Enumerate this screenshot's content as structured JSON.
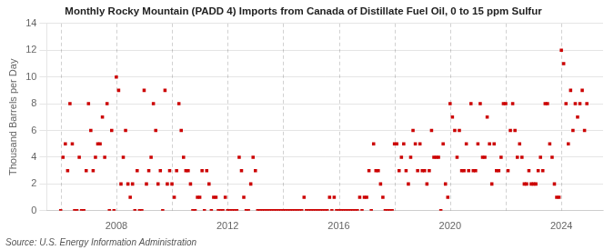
{
  "chart_data": {
    "type": "scatter",
    "title": "Monthly Rocky Mountain (PADD 4) Imports from Canada of Distillate Fuel Oil, 0 to 15 ppm Sulfur",
    "ylabel": "Thousand Barrels per Day",
    "annotations": [
      "Source: U.S. Energy Information Administration"
    ],
    "color": "#cc0000",
    "marker": "square",
    "grid": "y",
    "legend": false,
    "xlim": [
      2005.5,
      2025.5
    ],
    "xticks": [
      2008,
      2012,
      2016,
      2020,
      2024
    ],
    "ylim": [
      0,
      14
    ],
    "yticks": [
      0,
      2,
      4,
      6,
      8,
      10,
      12,
      14
    ],
    "vlines": [
      2006,
      2008,
      2010,
      2012,
      2014,
      2016,
      2018,
      2020,
      2022,
      2024
    ],
    "x": [
      2006.0,
      2006.083,
      2006.167,
      2006.25,
      2006.333,
      2006.417,
      2006.5,
      2006.583,
      2006.667,
      2006.75,
      2006.833,
      2006.917,
      2007.0,
      2007.083,
      2007.167,
      2007.25,
      2007.333,
      2007.417,
      2007.5,
      2007.583,
      2007.667,
      2007.75,
      2007.833,
      2007.917,
      2008.0,
      2008.083,
      2008.167,
      2008.25,
      2008.333,
      2008.417,
      2008.5,
      2008.583,
      2008.667,
      2008.75,
      2008.833,
      2008.917,
      2009.0,
      2009.083,
      2009.167,
      2009.25,
      2009.333,
      2009.417,
      2009.5,
      2009.583,
      2009.667,
      2009.75,
      2009.833,
      2009.917,
      2010.0,
      2010.083,
      2010.167,
      2010.25,
      2010.333,
      2010.417,
      2010.5,
      2010.583,
      2010.667,
      2010.75,
      2010.833,
      2010.917,
      2011.0,
      2011.083,
      2011.167,
      2011.25,
      2011.333,
      2011.417,
      2011.5,
      2011.583,
      2011.667,
      2011.75,
      2011.833,
      2011.917,
      2012.0,
      2012.083,
      2012.167,
      2012.25,
      2012.333,
      2012.417,
      2012.5,
      2012.583,
      2012.667,
      2012.75,
      2012.833,
      2012.917,
      2013.0,
      2013.083,
      2013.167,
      2013.25,
      2013.333,
      2013.417,
      2013.5,
      2013.583,
      2013.667,
      2013.75,
      2013.833,
      2013.917,
      2014.0,
      2014.083,
      2014.167,
      2014.25,
      2014.333,
      2014.417,
      2014.5,
      2014.583,
      2014.667,
      2014.75,
      2014.833,
      2014.917,
      2015.0,
      2015.083,
      2015.167,
      2015.25,
      2015.333,
      2015.417,
      2015.5,
      2015.583,
      2015.667,
      2015.75,
      2015.833,
      2015.917,
      2016.0,
      2016.083,
      2016.167,
      2016.25,
      2016.333,
      2016.417,
      2016.5,
      2016.583,
      2016.667,
      2016.75,
      2016.833,
      2016.917,
      2017.0,
      2017.083,
      2017.167,
      2017.25,
      2017.333,
      2017.417,
      2017.5,
      2017.583,
      2017.667,
      2017.75,
      2017.833,
      2017.917,
      2018.0,
      2018.083,
      2018.167,
      2018.25,
      2018.333,
      2018.417,
      2018.5,
      2018.583,
      2018.667,
      2018.75,
      2018.833,
      2018.917,
      2019.0,
      2019.083,
      2019.167,
      2019.25,
      2019.333,
      2019.417,
      2019.5,
      2019.583,
      2019.667,
      2019.75,
      2019.833,
      2019.917,
      2020.0,
      2020.083,
      2020.167,
      2020.25,
      2020.333,
      2020.417,
      2020.5,
      2020.583,
      2020.667,
      2020.75,
      2020.833,
      2020.917,
      2021.0,
      2021.083,
      2021.167,
      2021.25,
      2021.333,
      2021.417,
      2021.5,
      2021.583,
      2021.667,
      2021.75,
      2021.833,
      2021.917,
      2022.0,
      2022.083,
      2022.167,
      2022.25,
      2022.333,
      2022.417,
      2022.5,
      2022.583,
      2022.667,
      2022.75,
      2022.833,
      2022.917,
      2023.0,
      2023.083,
      2023.167,
      2023.25,
      2023.333,
      2023.417,
      2023.5,
      2023.583,
      2023.667,
      2023.75,
      2023.833,
      2023.917,
      2024.0,
      2024.083,
      2024.167,
      2024.25,
      2024.333,
      2024.417,
      2024.5,
      2024.583,
      2024.667,
      2024.75,
      2024.833,
      2024.917
    ],
    "values": [
      0,
      4,
      5,
      3,
      8,
      5,
      0,
      0,
      4,
      0,
      0,
      3,
      8,
      6,
      3,
      4,
      5,
      5,
      7,
      4,
      8,
      0,
      6,
      0,
      10,
      9,
      2,
      4,
      6,
      2,
      1,
      2,
      0,
      3,
      0,
      0,
      9,
      2,
      3,
      4,
      8,
      6,
      2,
      3,
      0,
      9,
      2,
      3,
      2,
      1,
      3,
      8,
      6,
      4,
      3,
      3,
      2,
      0,
      0,
      1,
      1,
      3,
      0,
      3,
      2,
      0,
      1,
      1,
      0,
      0,
      0,
      1,
      0,
      0,
      0,
      0,
      0,
      4,
      3,
      1,
      0,
      0,
      2,
      4,
      3,
      0,
      0,
      0,
      0,
      0,
      0,
      0,
      0,
      0,
      0,
      0,
      0,
      0,
      0,
      0,
      0,
      0,
      0,
      0,
      0,
      1,
      0,
      0,
      0,
      0,
      0,
      0,
      0,
      0,
      0,
      0,
      1,
      0,
      1,
      0,
      0,
      0,
      0,
      0,
      0,
      0,
      0,
      0,
      0,
      1,
      0,
      1,
      1,
      3,
      0,
      5,
      3,
      3,
      2,
      1,
      0,
      0,
      0,
      0,
      5,
      5,
      3,
      4,
      5,
      3,
      2,
      4,
      6,
      5,
      3,
      5,
      3,
      3,
      2,
      3,
      6,
      4,
      4,
      4,
      0,
      5,
      2,
      1,
      8,
      7,
      6,
      4,
      6,
      3,
      3,
      5,
      3,
      8,
      3,
      3,
      5,
      8,
      4,
      4,
      7,
      5,
      2,
      5,
      3,
      3,
      4,
      8,
      8,
      3,
      6,
      8,
      6,
      4,
      5,
      4,
      2,
      2,
      3,
      2,
      2,
      2,
      3,
      4,
      3,
      8,
      8,
      5,
      4,
      2,
      1,
      1,
      12,
      11,
      8,
      5,
      9,
      6,
      8,
      7,
      8,
      9,
      6,
      8
    ]
  }
}
